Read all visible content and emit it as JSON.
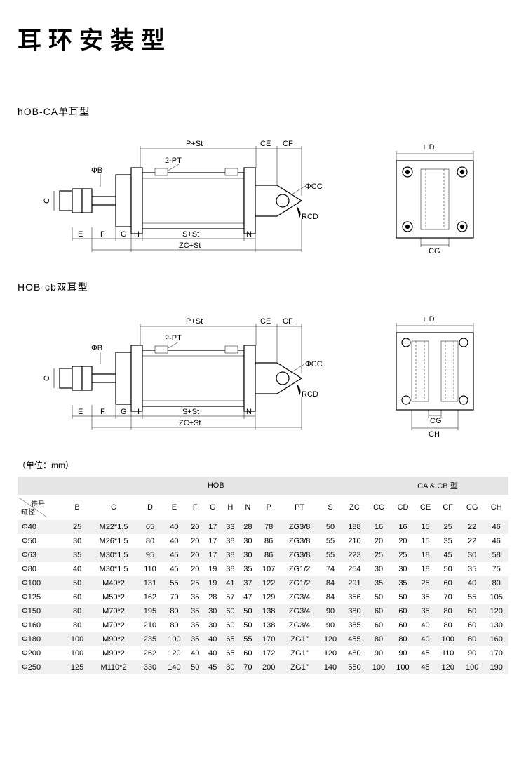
{
  "title": "耳环安装型",
  "section1_title": "hOB-CA单耳型",
  "section2_title": "HOB-cb双耳型",
  "unit_note": "（单位：mm）",
  "diagram_labels": {
    "P_St": "P+St",
    "CE": "CE",
    "CF": "CF",
    "two_PT": "2-PT",
    "phi_B": "ΦB",
    "phi_CC": "ΦCC",
    "RCD": "RCD",
    "C": "C",
    "E": "E",
    "F": "F",
    "G": "G",
    "H": "H",
    "S_St": "S+St",
    "N": "N",
    "ZC_St": "ZC+St",
    "sq_D": "□D",
    "CG": "CG",
    "CH": "CH"
  },
  "table": {
    "group_hob": "HOB",
    "group_cacb": "CA & CB 型",
    "sym_top": "符号",
    "sym_bot": "缸径",
    "columns": [
      "B",
      "C",
      "D",
      "E",
      "F",
      "G",
      "H",
      "N",
      "P",
      "PT",
      "S",
      "ZC",
      "CC",
      "CD",
      "CE",
      "CF",
      "CG",
      "CH"
    ],
    "rows": [
      {
        "label": "Φ40",
        "v": [
          "25",
          "M22*1.5",
          "65",
          "40",
          "20",
          "17",
          "33",
          "28",
          "78",
          "ZG3/8",
          "50",
          "188",
          "16",
          "16",
          "15",
          "25",
          "22",
          "46"
        ]
      },
      {
        "label": "Φ50",
        "v": [
          "30",
          "M26*1.5",
          "80",
          "40",
          "20",
          "17",
          "38",
          "30",
          "86",
          "ZG3/8",
          "55",
          "210",
          "20",
          "20",
          "15",
          "35",
          "22",
          "46"
        ]
      },
      {
        "label": "Φ63",
        "v": [
          "35",
          "M30*1.5",
          "95",
          "45",
          "20",
          "17",
          "38",
          "30",
          "86",
          "ZG3/8",
          "55",
          "223",
          "25",
          "25",
          "18",
          "45",
          "30",
          "58"
        ]
      },
      {
        "label": "Φ80",
        "v": [
          "40",
          "M30*1.5",
          "110",
          "45",
          "20",
          "19",
          "38",
          "35",
          "107",
          "ZG1/2",
          "74",
          "254",
          "30",
          "30",
          "18",
          "50",
          "35",
          "75"
        ]
      },
      {
        "label": "Φ100",
        "v": [
          "50",
          "M40*2",
          "131",
          "55",
          "25",
          "19",
          "41",
          "37",
          "122",
          "ZG1/2",
          "84",
          "291",
          "35",
          "35",
          "25",
          "60",
          "40",
          "80"
        ]
      },
      {
        "label": "Φ125",
        "v": [
          "60",
          "M50*2",
          "162",
          "70",
          "35",
          "28",
          "57",
          "47",
          "129",
          "ZG3/4",
          "84",
          "356",
          "50",
          "50",
          "35",
          "70",
          "55",
          "105"
        ]
      },
      {
        "label": "Φ150",
        "v": [
          "80",
          "M70*2",
          "195",
          "80",
          "35",
          "30",
          "60",
          "50",
          "138",
          "ZG3/4",
          "90",
          "380",
          "60",
          "60",
          "35",
          "80",
          "60",
          "120"
        ]
      },
      {
        "label": "Φ160",
        "v": [
          "80",
          "M70*2",
          "210",
          "80",
          "35",
          "30",
          "60",
          "50",
          "138",
          "ZG3/4",
          "90",
          "385",
          "60",
          "60",
          "40",
          "80",
          "60",
          "130"
        ]
      },
      {
        "label": "Φ180",
        "v": [
          "100",
          "M90*2",
          "235",
          "100",
          "35",
          "40",
          "65",
          "55",
          "170",
          "ZG1\"",
          "120",
          "455",
          "80",
          "80",
          "40",
          "100",
          "80",
          "160"
        ]
      },
      {
        "label": "Φ200",
        "v": [
          "100",
          "M90*2",
          "262",
          "120",
          "40",
          "40",
          "65",
          "60",
          "172",
          "ZG1\"",
          "120",
          "480",
          "90",
          "90",
          "45",
          "110",
          "90",
          "170"
        ]
      },
      {
        "label": "Φ250",
        "v": [
          "125",
          "M110*2",
          "330",
          "140",
          "50",
          "45",
          "80",
          "70",
          "200",
          "ZG1\"",
          "140",
          "550",
          "100",
          "100",
          "45",
          "120",
          "100",
          "190"
        ]
      }
    ]
  }
}
